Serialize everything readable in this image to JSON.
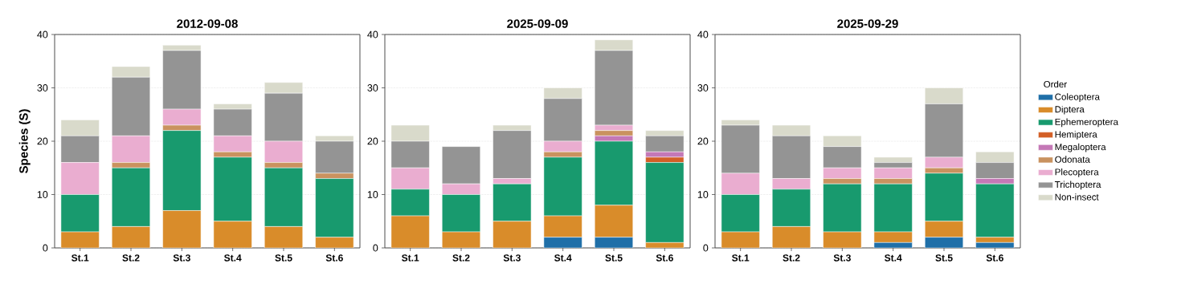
{
  "chart_data": [
    {
      "type": "bar",
      "title": "2012-09-08",
      "ylabel": "Species (S)",
      "stacked": true,
      "grid": "y",
      "ylim": [
        0,
        40
      ],
      "yticks": [
        0,
        10,
        20,
        30,
        40
      ],
      "categories": [
        "St.1",
        "St.2",
        "St.3",
        "St.4",
        "St.5",
        "St.6"
      ],
      "series": [
        {
          "color": "#1f6fa8",
          "values": [
            0,
            0,
            0,
            0,
            0,
            0
          ]
        },
        {
          "color": "#d98c2a",
          "values": [
            3,
            4,
            7,
            5,
            4,
            2
          ]
        },
        {
          "color": "#189a6e",
          "values": [
            7,
            11,
            15,
            12,
            11,
            11
          ]
        },
        {
          "color": "#d35f26",
          "values": [
            0,
            0,
            0,
            0,
            0,
            0
          ]
        },
        {
          "color": "#c478b6",
          "values": [
            0,
            0,
            0,
            0,
            0,
            0
          ]
        },
        {
          "color": "#c9925f",
          "values": [
            0,
            1,
            1,
            1,
            1,
            1
          ]
        },
        {
          "color": "#eaadd0",
          "values": [
            6,
            5,
            3,
            3,
            4,
            0
          ]
        },
        {
          "color": "#949494",
          "values": [
            5,
            11,
            11,
            5,
            9,
            6
          ]
        },
        {
          "color": "#d9dacb",
          "values": [
            3,
            2,
            1,
            1,
            2,
            1
          ]
        }
      ]
    },
    {
      "type": "bar",
      "title": "2025-09-09",
      "stacked": true,
      "grid": "y",
      "ylim": [
        0,
        40
      ],
      "yticks": [
        0,
        10,
        20,
        30,
        40
      ],
      "categories": [
        "St.1",
        "St.2",
        "St.3",
        "St.4",
        "St.5",
        "St.6"
      ],
      "series": [
        {
          "color": "#1f6fa8",
          "values": [
            0,
            0,
            0,
            2,
            2,
            0
          ]
        },
        {
          "color": "#d98c2a",
          "values": [
            6,
            3,
            5,
            4,
            6,
            1
          ]
        },
        {
          "color": "#189a6e",
          "values": [
            5,
            7,
            7,
            11,
            12,
            15
          ]
        },
        {
          "color": "#d35f26",
          "values": [
            0,
            0,
            0,
            0,
            0,
            1
          ]
        },
        {
          "color": "#c478b6",
          "values": [
            0,
            0,
            0,
            0,
            1,
            1
          ]
        },
        {
          "color": "#c9925f",
          "values": [
            0,
            0,
            0,
            1,
            1,
            0
          ]
        },
        {
          "color": "#eaadd0",
          "values": [
            4,
            2,
            1,
            2,
            1,
            0
          ]
        },
        {
          "color": "#949494",
          "values": [
            5,
            7,
            9,
            8,
            14,
            3
          ]
        },
        {
          "color": "#d9dacb",
          "values": [
            3,
            0,
            1,
            2,
            2,
            1
          ]
        }
      ]
    },
    {
      "type": "bar",
      "title": "2025-09-29",
      "stacked": true,
      "grid": "y",
      "ylim": [
        0,
        40
      ],
      "yticks": [
        0,
        10,
        20,
        30,
        40
      ],
      "legend": "right",
      "legend_title": "Order",
      "categories": [
        "St.1",
        "St.2",
        "St.3",
        "St.4",
        "St.5",
        "St.6"
      ],
      "series": [
        {
          "name": "Coleoptera",
          "color": "#1f6fa8",
          "values": [
            0,
            0,
            0,
            1,
            2,
            1
          ]
        },
        {
          "name": "Diptera",
          "color": "#d98c2a",
          "values": [
            3,
            4,
            3,
            2,
            3,
            1
          ]
        },
        {
          "name": "Ephemeroptera",
          "color": "#189a6e",
          "values": [
            7,
            7,
            9,
            9,
            9,
            10
          ]
        },
        {
          "name": "Hemiptera",
          "color": "#d35f26",
          "values": [
            0,
            0,
            0,
            0,
            0,
            0
          ]
        },
        {
          "name": "Megaloptera",
          "color": "#c478b6",
          "values": [
            0,
            0,
            0,
            0,
            0,
            1
          ]
        },
        {
          "name": "Odonata",
          "color": "#c9925f",
          "values": [
            0,
            0,
            1,
            1,
            1,
            0
          ]
        },
        {
          "name": "Plecoptera",
          "color": "#eaadd0",
          "values": [
            4,
            2,
            2,
            2,
            2,
            0
          ]
        },
        {
          "name": "Trichoptera",
          "color": "#949494",
          "values": [
            9,
            8,
            4,
            1,
            10,
            3
          ]
        },
        {
          "name": "Non-insect",
          "color": "#d9dacb",
          "values": [
            1,
            2,
            2,
            1,
            3,
            2
          ]
        }
      ]
    }
  ]
}
